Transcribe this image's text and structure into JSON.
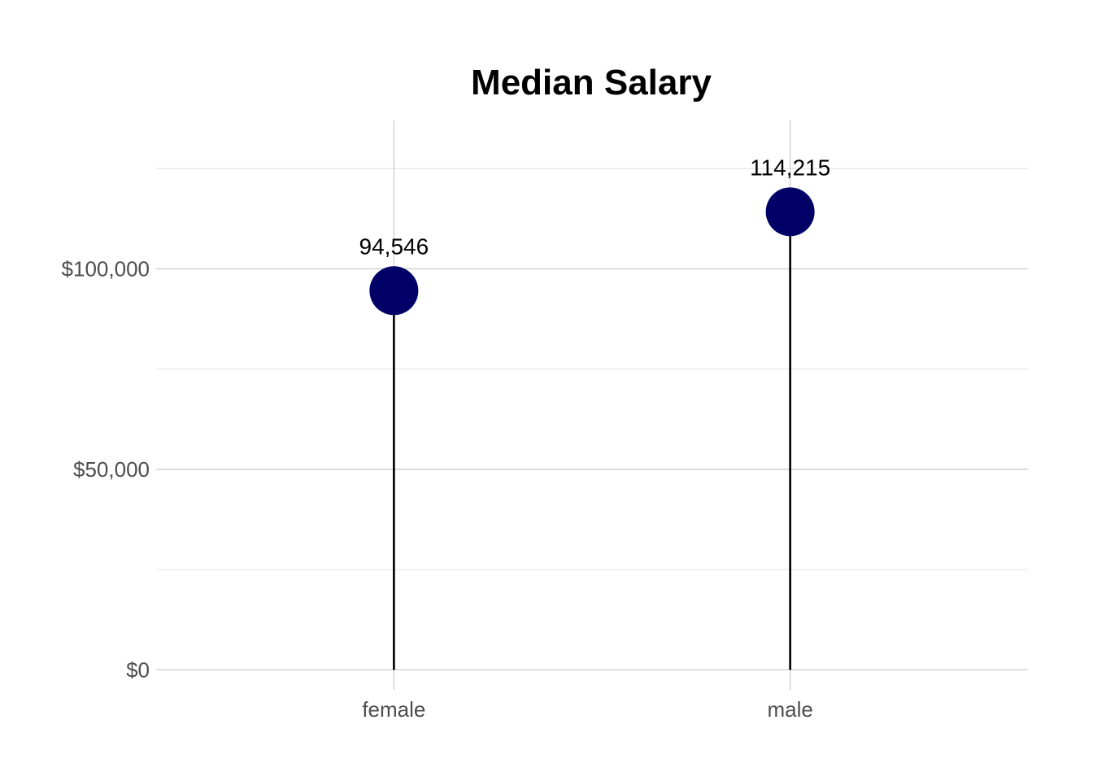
{
  "chart_data": {
    "type": "lollipop",
    "title": "Median Salary",
    "xlabel": "",
    "ylabel": "",
    "categories": [
      "female",
      "male"
    ],
    "values": [
      94546,
      114215
    ],
    "data_labels": [
      "94,546",
      "114,215"
    ],
    "ylim": [
      -5000,
      137000
    ],
    "y_ticks": [
      0,
      50000,
      100000
    ],
    "y_tick_labels": [
      "$0",
      "$50,000",
      "$100,000"
    ],
    "y_minor_ticks": [
      25000,
      75000,
      125000
    ],
    "grid": true,
    "legend": "none",
    "colors": {
      "point": "#000066",
      "stem": "#000000"
    }
  }
}
